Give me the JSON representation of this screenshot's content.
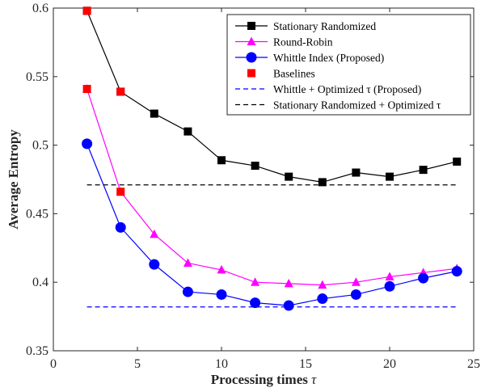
{
  "chart_data": {
    "type": "line",
    "xlabel": "Processing times",
    "xlabel_symbol": "τ",
    "ylabel": "Average Entropy",
    "xlim": [
      0,
      25
    ],
    "ylim": [
      0.35,
      0.6
    ],
    "xticks": [
      0,
      5,
      10,
      15,
      20,
      25
    ],
    "yticks": [
      0.35,
      0.4,
      0.45,
      0.5,
      0.55,
      0.6
    ],
    "xtick_labels": [
      "0",
      "5",
      "10",
      "15",
      "20",
      "25"
    ],
    "ytick_labels": [
      "0.35",
      "0.4",
      "0.45",
      "0.5",
      "0.55",
      "0.6"
    ],
    "grid": false,
    "legend_position": "top-right",
    "series": [
      {
        "name": "Stationary Randomized",
        "color": "#000000",
        "marker": "square",
        "x": [
          2,
          4,
          6,
          8,
          10,
          12,
          14,
          16,
          18,
          20,
          22,
          24
        ],
        "y": [
          0.598,
          0.539,
          0.523,
          0.51,
          0.489,
          0.485,
          0.477,
          0.473,
          0.48,
          0.477,
          0.482,
          0.488
        ]
      },
      {
        "name": "Round-Robin",
        "color": "#ff00ff",
        "marker": "triangle",
        "x": [
          2,
          4,
          6,
          8,
          10,
          12,
          14,
          16,
          18,
          20,
          22,
          24
        ],
        "y": [
          0.541,
          0.466,
          0.435,
          0.414,
          0.409,
          0.4,
          0.399,
          0.398,
          0.4,
          0.404,
          0.407,
          0.41
        ]
      },
      {
        "name": "Whittle Index (Proposed)",
        "color": "#0000ff",
        "marker": "circle",
        "x": [
          2,
          4,
          6,
          8,
          10,
          12,
          14,
          16,
          18,
          20,
          22,
          24
        ],
        "y": [
          0.501,
          0.44,
          0.413,
          0.393,
          0.391,
          0.385,
          0.383,
          0.388,
          0.391,
          0.397,
          0.403,
          0.408
        ]
      },
      {
        "name": "Baselines",
        "color": "#ff0000",
        "marker": "square",
        "x": [
          2,
          2,
          4,
          4
        ],
        "y": [
          0.598,
          0.541,
          0.539,
          0.466
        ]
      },
      {
        "name": "Whittle + Optimized τ (Proposed)",
        "color": "#0000ff",
        "dashed": true,
        "x": [
          2,
          24
        ],
        "y": [
          0.382,
          0.382
        ]
      },
      {
        "name": "Stationary Randomized + Optimized τ",
        "color": "#000000",
        "dashed": true,
        "x": [
          2,
          24
        ],
        "y": [
          0.471,
          0.471
        ]
      }
    ]
  }
}
